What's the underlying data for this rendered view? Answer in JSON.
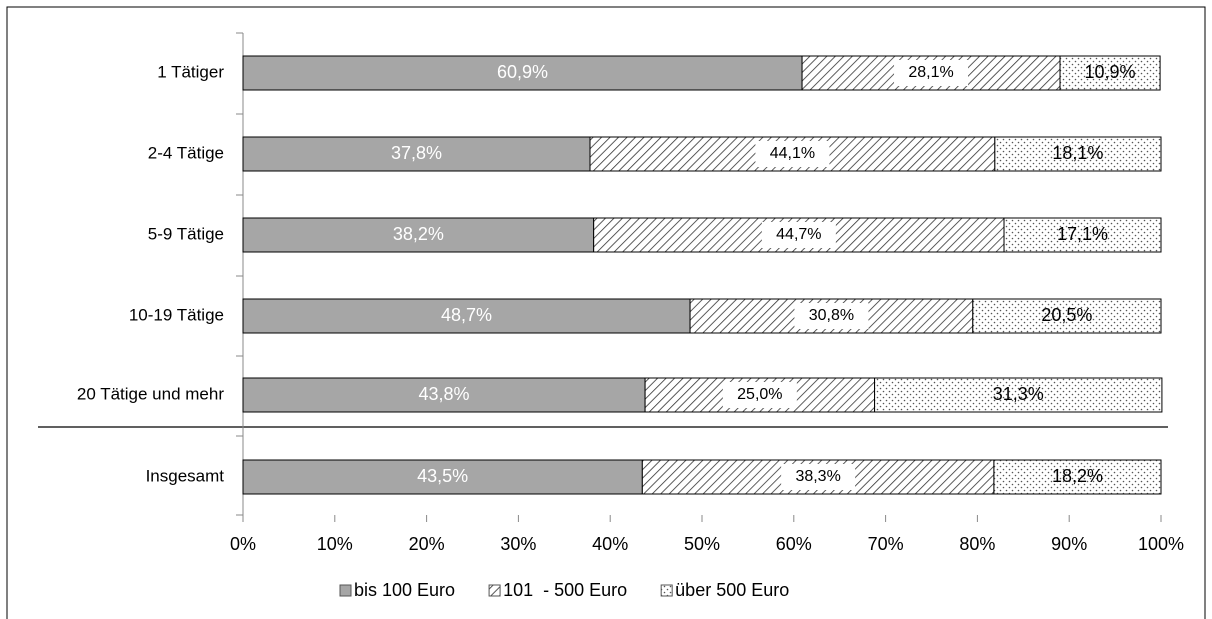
{
  "chart_data": {
    "type": "stacked_barh",
    "categories": [
      "1 Tätiger",
      "2-4 Tätige",
      "5-9 Tätige",
      "10-19 Tätige",
      "20 Tätige und mehr",
      "Insgesamt"
    ],
    "series": [
      {
        "name": "bis 100 Euro",
        "color": "#a6a6a6",
        "values": [
          60.9,
          37.8,
          38.2,
          48.7,
          43.8,
          43.5
        ],
        "value_labels": [
          "60,9%",
          "37,8%",
          "38,2%",
          "48,7%",
          "43,8%",
          "43,5%"
        ]
      },
      {
        "name": "101  - 500 Euro",
        "color": "#ffffff",
        "values": [
          28.1,
          44.1,
          44.7,
          30.8,
          25.0,
          38.3
        ],
        "value_labels": [
          "28,1%",
          "44,1%",
          "44,7%",
          "30,8%",
          "25,0%",
          "38,3%"
        ]
      },
      {
        "name": "über 500 Euro",
        "color": "#ffffff",
        "values": [
          10.9,
          18.1,
          17.1,
          20.5,
          31.3,
          18.2
        ],
        "value_labels": [
          "10,9%",
          "18,1%",
          "17,1%",
          "20,5%",
          "31,3%",
          "18,2%"
        ]
      }
    ],
    "xlim": [
      0,
      100
    ],
    "xticks": [
      {
        "value": 0,
        "label": "0%"
      },
      {
        "value": 10,
        "label": "10%"
      },
      {
        "value": 20,
        "label": "20%"
      },
      {
        "value": 30,
        "label": "30%"
      },
      {
        "value": 40,
        "label": "40%"
      },
      {
        "value": 50,
        "label": "50%"
      },
      {
        "value": 60,
        "label": "60%"
      },
      {
        "value": 70,
        "label": "70%"
      },
      {
        "value": 80,
        "label": "80%"
      },
      {
        "value": 90,
        "label": "90%"
      },
      {
        "value": 100,
        "label": "100%"
      }
    ],
    "legend": "bottom"
  }
}
